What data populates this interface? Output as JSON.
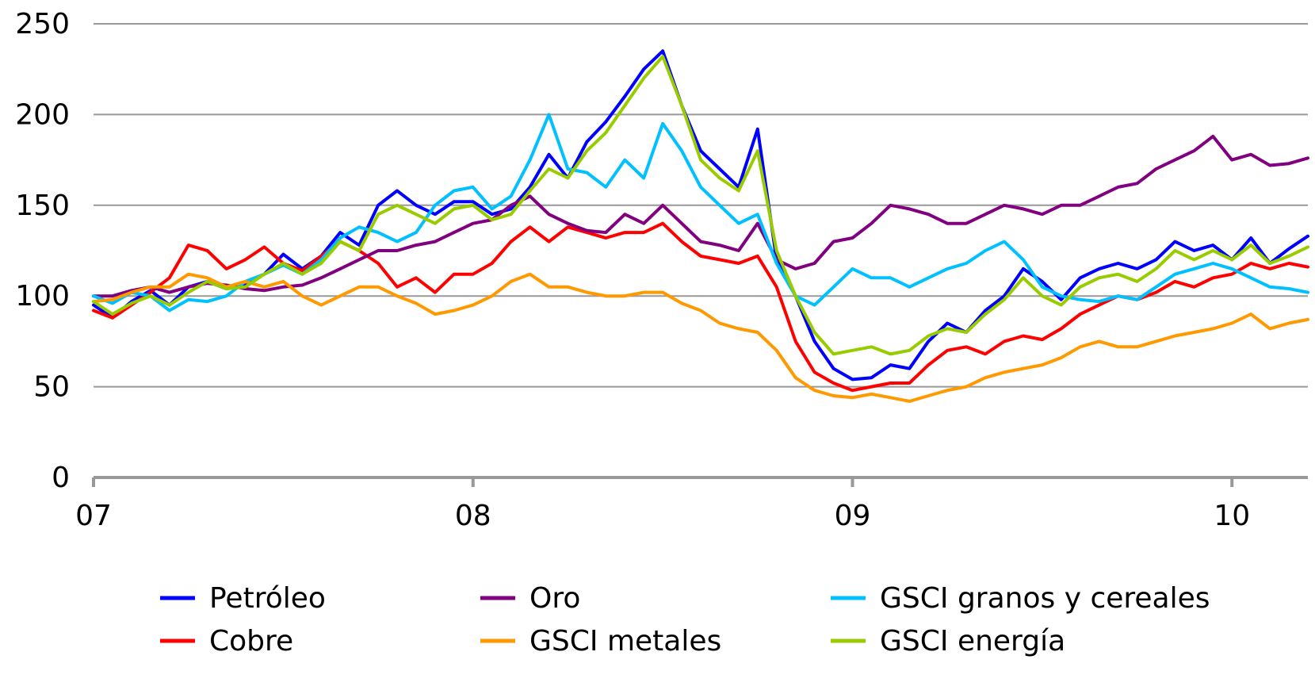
{
  "chart_data": {
    "type": "line",
    "title": "",
    "xlabel": "",
    "ylabel": "",
    "ylim": [
      0,
      250
    ],
    "xlim": [
      2007.0,
      2010.2
    ],
    "yticks": [
      0,
      50,
      100,
      150,
      200,
      250
    ],
    "xticks": [
      {
        "value": 2007,
        "label": "07"
      },
      {
        "value": 2008,
        "label": "08"
      },
      {
        "value": 2009,
        "label": "09"
      },
      {
        "value": 2010,
        "label": "10"
      }
    ],
    "grid": "horizontal",
    "legend": "bottom",
    "x": [
      2007.0,
      2007.05,
      2007.1,
      2007.15,
      2007.2,
      2007.25,
      2007.3,
      2007.35,
      2007.4,
      2007.45,
      2007.5,
      2007.55,
      2007.6,
      2007.65,
      2007.7,
      2007.75,
      2007.8,
      2007.85,
      2007.9,
      2007.95,
      2008.0,
      2008.05,
      2008.1,
      2008.15,
      2008.2,
      2008.25,
      2008.3,
      2008.35,
      2008.4,
      2008.45,
      2008.5,
      2008.55,
      2008.6,
      2008.65,
      2008.7,
      2008.75,
      2008.8,
      2008.85,
      2008.9,
      2008.95,
      2009.0,
      2009.05,
      2009.1,
      2009.15,
      2009.2,
      2009.25,
      2009.3,
      2009.35,
      2009.4,
      2009.45,
      2009.5,
      2009.55,
      2009.6,
      2009.65,
      2009.7,
      2009.75,
      2009.8,
      2009.85,
      2009.9,
      2009.95,
      2010.0,
      2010.05,
      2010.1,
      2010.15,
      2010.2
    ],
    "series": [
      {
        "name": "Petróleo",
        "color": "#0000ff",
        "values": [
          95,
          88,
          97,
          103,
          95,
          105,
          108,
          104,
          106,
          112,
          123,
          115,
          122,
          135,
          128,
          150,
          158,
          150,
          145,
          152,
          152,
          145,
          148,
          160,
          178,
          165,
          185,
          196,
          210,
          225,
          235,
          205,
          180,
          170,
          160,
          192,
          120,
          100,
          75,
          60,
          54,
          55,
          62,
          60,
          75,
          85,
          80,
          92,
          100,
          115,
          108,
          98,
          110,
          115,
          118,
          115,
          120,
          130,
          125,
          128,
          120,
          132,
          118,
          126,
          133
        ]
      },
      {
        "name": "Cobre",
        "color": "#ff0000",
        "values": [
          92,
          88,
          95,
          102,
          110,
          128,
          125,
          115,
          120,
          127,
          118,
          114,
          122,
          130,
          125,
          118,
          105,
          110,
          102,
          112,
          112,
          118,
          130,
          138,
          130,
          138,
          135,
          132,
          135,
          135,
          140,
          130,
          122,
          120,
          118,
          122,
          105,
          75,
          58,
          52,
          48,
          50,
          52,
          52,
          62,
          70,
          72,
          68,
          75,
          78,
          76,
          82,
          90,
          95,
          100,
          98,
          102,
          108,
          105,
          110,
          112,
          118,
          115,
          118,
          116
        ]
      },
      {
        "name": "Oro",
        "color": "#800080",
        "values": [
          100,
          100,
          103,
          105,
          102,
          105,
          107,
          106,
          104,
          103,
          105,
          106,
          110,
          115,
          120,
          125,
          125,
          128,
          130,
          135,
          140,
          142,
          150,
          155,
          145,
          140,
          136,
          135,
          145,
          140,
          150,
          140,
          130,
          128,
          125,
          140,
          120,
          115,
          118,
          130,
          132,
          140,
          150,
          148,
          145,
          140,
          140,
          145,
          150,
          148,
          145,
          150,
          150,
          155,
          160,
          162,
          170,
          175,
          180,
          188,
          175,
          178,
          172,
          173,
          176
        ]
      },
      {
        "name": "GSCI granos y cereales",
        "color": "#00c0ff",
        "values": [
          100,
          96,
          102,
          100,
          92,
          98,
          97,
          100,
          108,
          112,
          117,
          112,
          120,
          132,
          138,
          135,
          130,
          135,
          150,
          158,
          160,
          148,
          155,
          175,
          200,
          170,
          168,
          160,
          175,
          165,
          195,
          180,
          160,
          150,
          140,
          145,
          118,
          100,
          95,
          105,
          115,
          110,
          110,
          105,
          110,
          115,
          118,
          125,
          130,
          120,
          105,
          100,
          98,
          97,
          100,
          98,
          105,
          112,
          115,
          118,
          115,
          110,
          105,
          104,
          102
        ]
      },
      {
        "name": "GSCI metales",
        "color": "#ff9900",
        "values": [
          97,
          98,
          102,
          105,
          105,
          112,
          110,
          105,
          108,
          105,
          108,
          100,
          95,
          100,
          105,
          105,
          100,
          96,
          90,
          92,
          95,
          100,
          108,
          112,
          105,
          105,
          102,
          100,
          100,
          102,
          102,
          96,
          92,
          85,
          82,
          80,
          70,
          55,
          48,
          45,
          44,
          46,
          44,
          42,
          45,
          48,
          50,
          55,
          58,
          60,
          62,
          66,
          72,
          75,
          72,
          72,
          75,
          78,
          80,
          82,
          85,
          90,
          82,
          85,
          87
        ]
      },
      {
        "name": "GSCI energía",
        "color": "#99cc00",
        "values": [
          97,
          90,
          96,
          100,
          95,
          102,
          108,
          104,
          105,
          112,
          118,
          112,
          118,
          130,
          125,
          145,
          150,
          145,
          140,
          148,
          150,
          142,
          145,
          158,
          170,
          165,
          180,
          190,
          205,
          220,
          232,
          205,
          175,
          165,
          158,
          180,
          125,
          100,
          80,
          68,
          70,
          72,
          68,
          70,
          78,
          82,
          80,
          90,
          98,
          110,
          100,
          95,
          105,
          110,
          112,
          108,
          115,
          125,
          120,
          125,
          120,
          128,
          118,
          122,
          127
        ]
      }
    ]
  }
}
